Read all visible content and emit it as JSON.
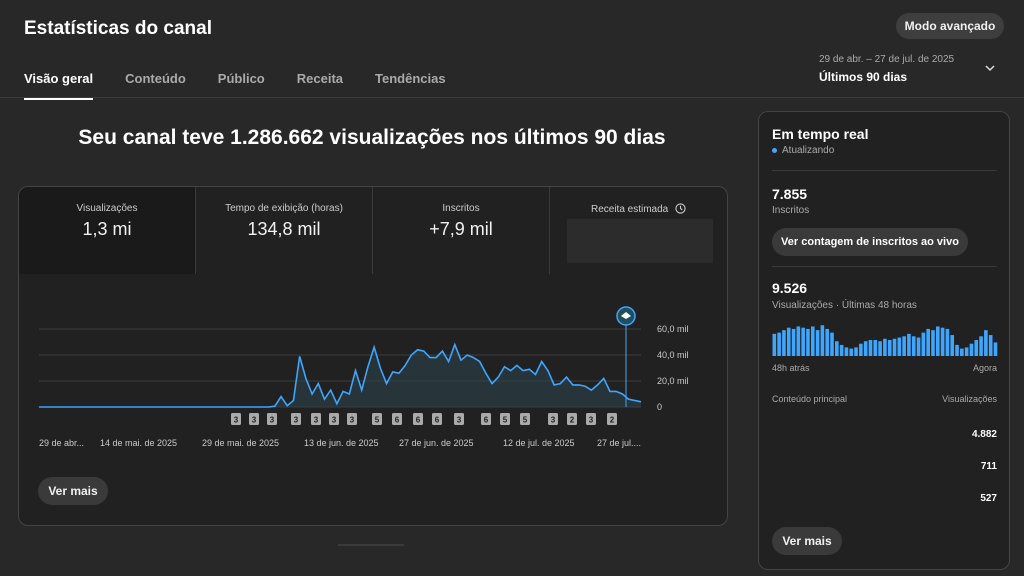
{
  "header": {
    "title": "Estatísticas do canal",
    "advanced_button": "Modo avançado",
    "tabs": [
      "Visão geral",
      "Conteúdo",
      "Público",
      "Receita",
      "Tendências"
    ],
    "active_tab": "Visão geral",
    "date_range": "29 de abr. – 27 de jul. de 2025",
    "period": "Últimos 90 dias"
  },
  "headline": "Seu canal teve 1.286.662 visualizações nos últimos 90 dias",
  "metrics": [
    {
      "label": "Visualizações",
      "value": "1,3 mi"
    },
    {
      "label": "Tempo de exibição (horas)",
      "value": "134,8 mil"
    },
    {
      "label": "Inscritos",
      "value": "+7,9 mil"
    },
    {
      "label": "Receita estimada",
      "value": ""
    }
  ],
  "chart_data": {
    "type": "area",
    "x_tick_labels": [
      "29 de abr...",
      "14 de mai. de 2025",
      "29 de mai. de 2025",
      "13 de jun. de 2025",
      "27 de jun. de 2025",
      "12 de jul. de 2025",
      "27 de jul...."
    ],
    "y_tick_labels": [
      "60,0 mil",
      "40,0 mil",
      "20,0 mil",
      "0"
    ],
    "ylim": [
      0,
      60000
    ],
    "values": [
      0,
      0,
      0,
      0,
      0,
      0,
      0,
      0,
      0,
      0,
      0,
      0,
      0,
      0,
      0,
      0,
      0,
      0,
      0,
      0,
      0,
      0,
      0,
      0,
      0,
      0,
      0,
      0,
      0,
      0,
      0,
      0,
      0,
      0,
      0,
      0,
      0,
      0,
      600,
      8000,
      1000,
      5000,
      39000,
      22000,
      10000,
      18000,
      6000,
      13000,
      2500,
      12000,
      10000,
      28000,
      13000,
      31000,
      46000,
      30000,
      18000,
      27000,
      26000,
      32000,
      40000,
      44000,
      43000,
      38000,
      38000,
      43000,
      35000,
      48000,
      36000,
      40000,
      38000,
      35000,
      26000,
      18000,
      23000,
      31000,
      28000,
      32000,
      28000,
      29000,
      25000,
      35000,
      28000,
      17000,
      18000,
      23000,
      17000,
      17000,
      16000,
      13000,
      17000,
      22000,
      12000,
      12000,
      10000,
      6000,
      5000,
      4000
    ],
    "upload_markers": [
      "3",
      "3",
      "3",
      "3",
      "3",
      "3",
      "3",
      "5",
      "6",
      "6",
      "6",
      "3",
      "6",
      "5",
      "5",
      "3",
      "2",
      "3",
      "2"
    ]
  },
  "main_more_button": "Ver mais",
  "realtime": {
    "title": "Em tempo real",
    "status": "Atualizando",
    "subs_value": "7.855",
    "subs_label": "Inscritos",
    "live_button": "Ver contagem de inscritos ao vivo",
    "views_value": "9.526",
    "views_label": "Visualizações · Últimas 48 horas",
    "left_axis": "48h atrás",
    "right_axis": "Agora",
    "bars": [
      18,
      19,
      21,
      23,
      22,
      24,
      23,
      22,
      24,
      21,
      25,
      22,
      19,
      12,
      9,
      7,
      6,
      7,
      10,
      12,
      13,
      13,
      12,
      14,
      13,
      14,
      15,
      16,
      18,
      16,
      15,
      19,
      22,
      21,
      24,
      23,
      22,
      17,
      9,
      6,
      7,
      10,
      13,
      16,
      21,
      17,
      11
    ],
    "table_header_left": "Conteúdo principal",
    "table_header_right": "Visualizações",
    "top_content": [
      {
        "views": "4.882"
      },
      {
        "views": "711"
      },
      {
        "views": "527"
      }
    ],
    "more_button": "Ver mais"
  }
}
